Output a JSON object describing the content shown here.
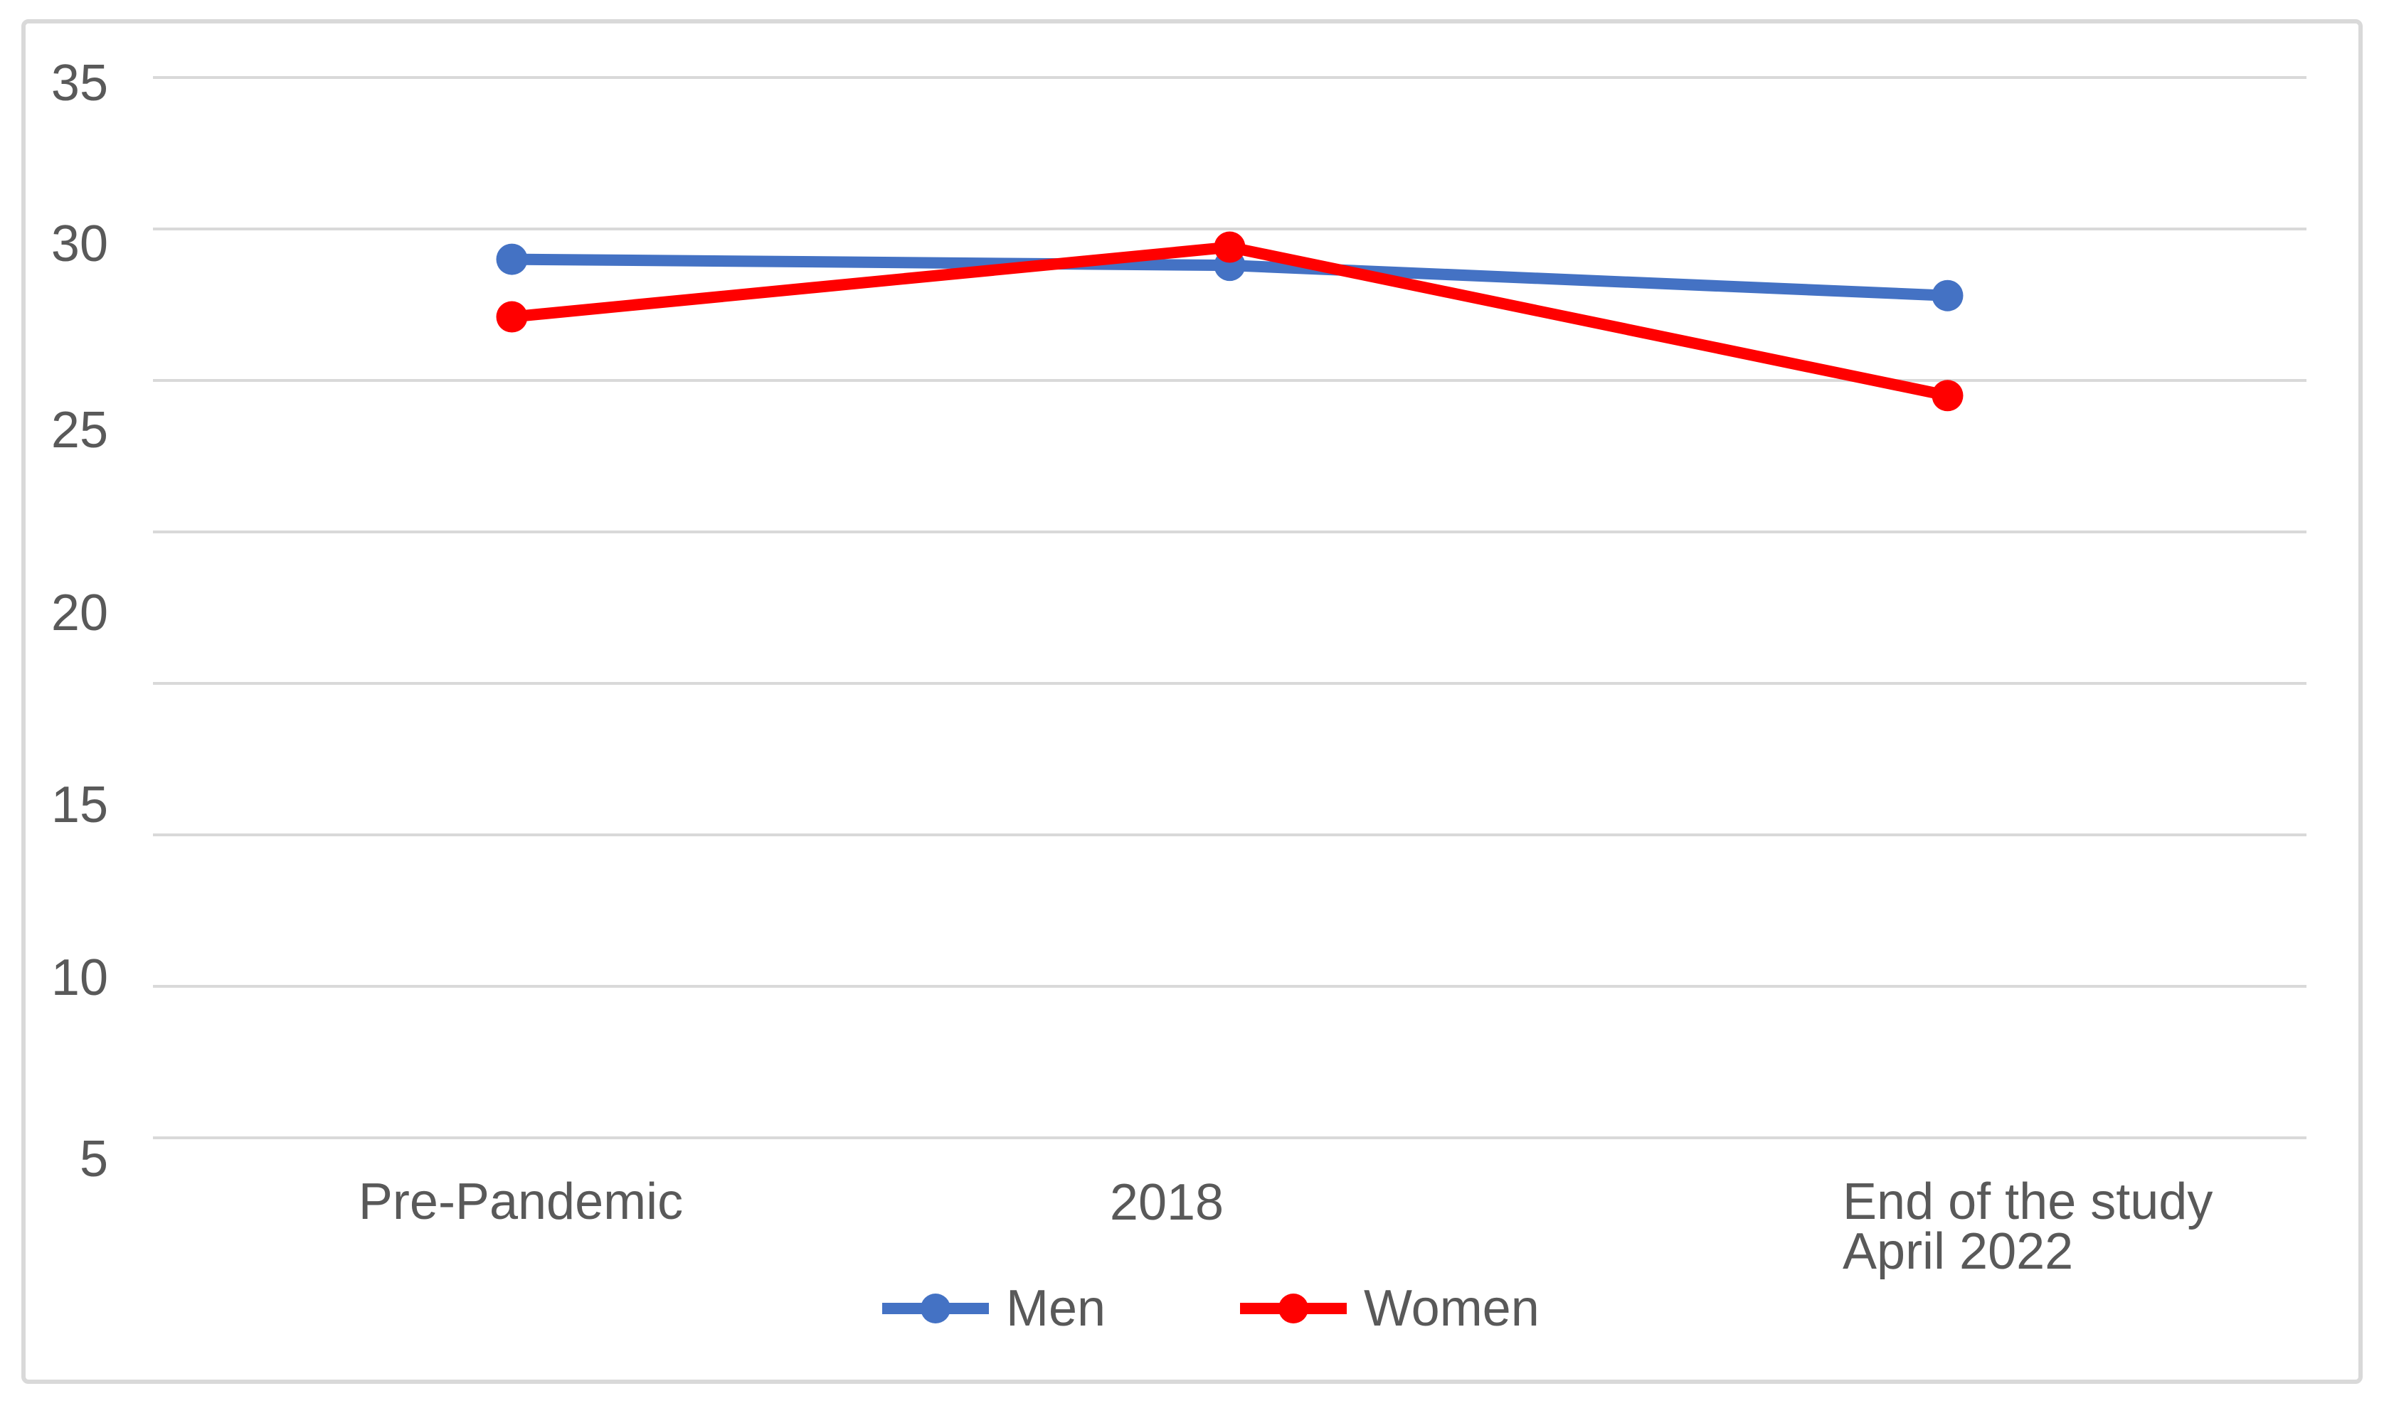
{
  "figure": {
    "background_color": "#FFFFFF",
    "frame_border_color": "#D9D9D9",
    "gridline_color": "#D9D9D9",
    "text_color": "#595959"
  },
  "chart_data": {
    "type": "line",
    "title": "",
    "xlabel": "",
    "ylabel": "",
    "categories": [
      "Pre-Pandemic",
      "2018",
      "End of the study\nApril 2022"
    ],
    "series": [
      {
        "name": "Men",
        "color": "#4472C4",
        "marker": "circle",
        "values": [
          29.0,
          28.8,
          27.8
        ]
      },
      {
        "name": "Women",
        "color": "#FF0000",
        "marker": "circle",
        "values": [
          27.1,
          29.4,
          24.5
        ]
      }
    ],
    "y_axis": {
      "ticks": [
        35,
        30,
        25,
        20,
        15,
        10,
        5
      ],
      "min": 0,
      "max": 35,
      "major_unit": 5
    },
    "grid": true,
    "legend": {
      "position": "bottom",
      "entries": [
        "Men",
        "Women"
      ]
    }
  }
}
